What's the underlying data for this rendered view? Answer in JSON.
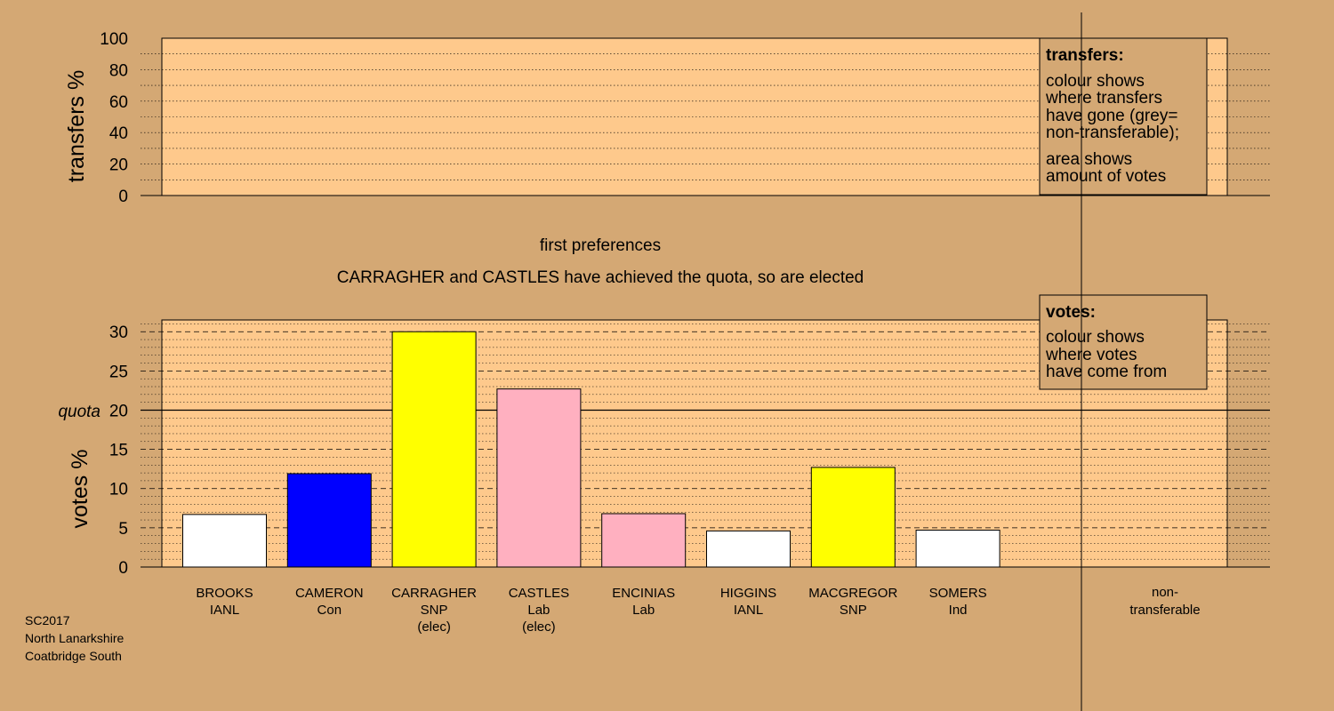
{
  "chart_data": [
    {
      "type": "bar",
      "name": "transfers",
      "ylabel": "transfers %",
      "ylim": [
        0,
        100
      ],
      "yticks": [
        0,
        20,
        40,
        60,
        80,
        100
      ],
      "grid": true,
      "values": [],
      "legend": {
        "title": "transfers:",
        "lines": [
          "colour shows",
          "where transfers",
          "have gone (grey=",
          "non-transferable);"
        ],
        "lines2": [
          "area shows",
          "amount of votes"
        ]
      }
    },
    {
      "type": "bar",
      "name": "votes",
      "ylabel": "votes %",
      "ylim": [
        0,
        31.5
      ],
      "yticks": [
        0,
        5,
        10,
        15,
        20,
        25,
        30
      ],
      "quota": 20,
      "quota_label": "quota",
      "grid": true,
      "categories": [
        {
          "name": "BROOKS",
          "party": "IANL",
          "note": "",
          "value": 6.7,
          "color": "#ffffff"
        },
        {
          "name": "CAMERON",
          "party": "Con",
          "note": "",
          "value": 11.9,
          "color": "#0000ff"
        },
        {
          "name": "CARRAGHER",
          "party": "SNP",
          "note": "(elec)",
          "value": 30.0,
          "color": "#ffff00"
        },
        {
          "name": "CASTLES",
          "party": "Lab",
          "note": "(elec)",
          "value": 22.7,
          "color": "#ffb0c0"
        },
        {
          "name": "ENCINIAS",
          "party": "Lab",
          "note": "",
          "value": 6.8,
          "color": "#ffb0c0"
        },
        {
          "name": "HIGGINS",
          "party": "IANL",
          "note": "",
          "value": 4.6,
          "color": "#ffffff"
        },
        {
          "name": "MACGREGOR",
          "party": "SNP",
          "note": "",
          "value": 12.7,
          "color": "#ffff00"
        },
        {
          "name": "SOMERS",
          "party": "Ind",
          "note": "",
          "value": 4.7,
          "color": "#ffffff"
        }
      ],
      "nontransferable_label": [
        "non-",
        "transferable"
      ],
      "legend": {
        "title": "votes:",
        "lines": [
          "colour shows",
          "where votes",
          "have come from"
        ]
      }
    }
  ],
  "stage_title": "first preferences",
  "stage_subtitle": "CARRAGHER and CASTLES have achieved the quota, so are elected",
  "footer": [
    "SC2017",
    "North Lanarkshire",
    "Coatbridge South"
  ],
  "colors": {
    "background": "#d4a874",
    "plot_fill": "#fec98c",
    "legend_fill": "#d4a874"
  }
}
